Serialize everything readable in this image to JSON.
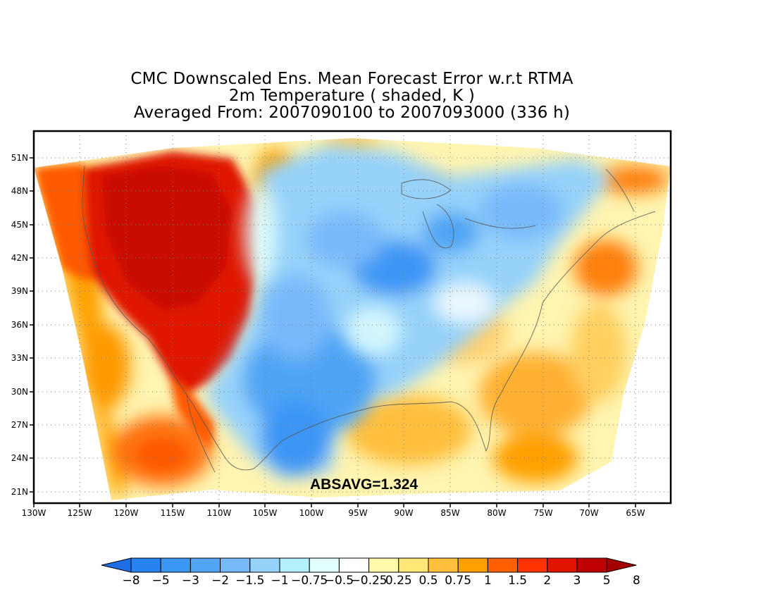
{
  "title": {
    "line1": "CMC Downscaled Ens. Mean Forecast Error w.r.t RTMA",
    "line2": "2m Temperature ( shaded, K )",
    "line3": "Averaged From: 2007090100 to 2007093000 (336 h)"
  },
  "annotation": "ABSAVG=1.324",
  "axes": {
    "lon_labels": [
      "130W",
      "125W",
      "120W",
      "115W",
      "110W",
      "105W",
      "100W",
      "95W",
      "90W",
      "85W",
      "80W",
      "75W",
      "70W",
      "65W"
    ],
    "lat_labels": [
      "51N",
      "48N",
      "45N",
      "42N",
      "39N",
      "36N",
      "33N",
      "30N",
      "27N",
      "24N",
      "21N"
    ]
  },
  "colorbar": {
    "colors": [
      "#1e6ee6",
      "#2882f0",
      "#3c96f5",
      "#50a5f5",
      "#78b9fa",
      "#96d2fa",
      "#b4f0fa",
      "#e1ffff",
      "#ffffff",
      "#fffaaa",
      "#ffe878",
      "#ffc03c",
      "#ffa000",
      "#ff6000",
      "#ff3200",
      "#e11400",
      "#c00000",
      "#a50000"
    ],
    "labels": [
      "−8",
      "−5",
      "−3",
      "−2",
      "−1.5",
      "−1",
      "−0.75",
      "−0.5",
      "−0.25",
      "0.25",
      "0.5",
      "0.75",
      "1",
      "1.5",
      "2",
      "3",
      "5",
      "8"
    ]
  }
}
